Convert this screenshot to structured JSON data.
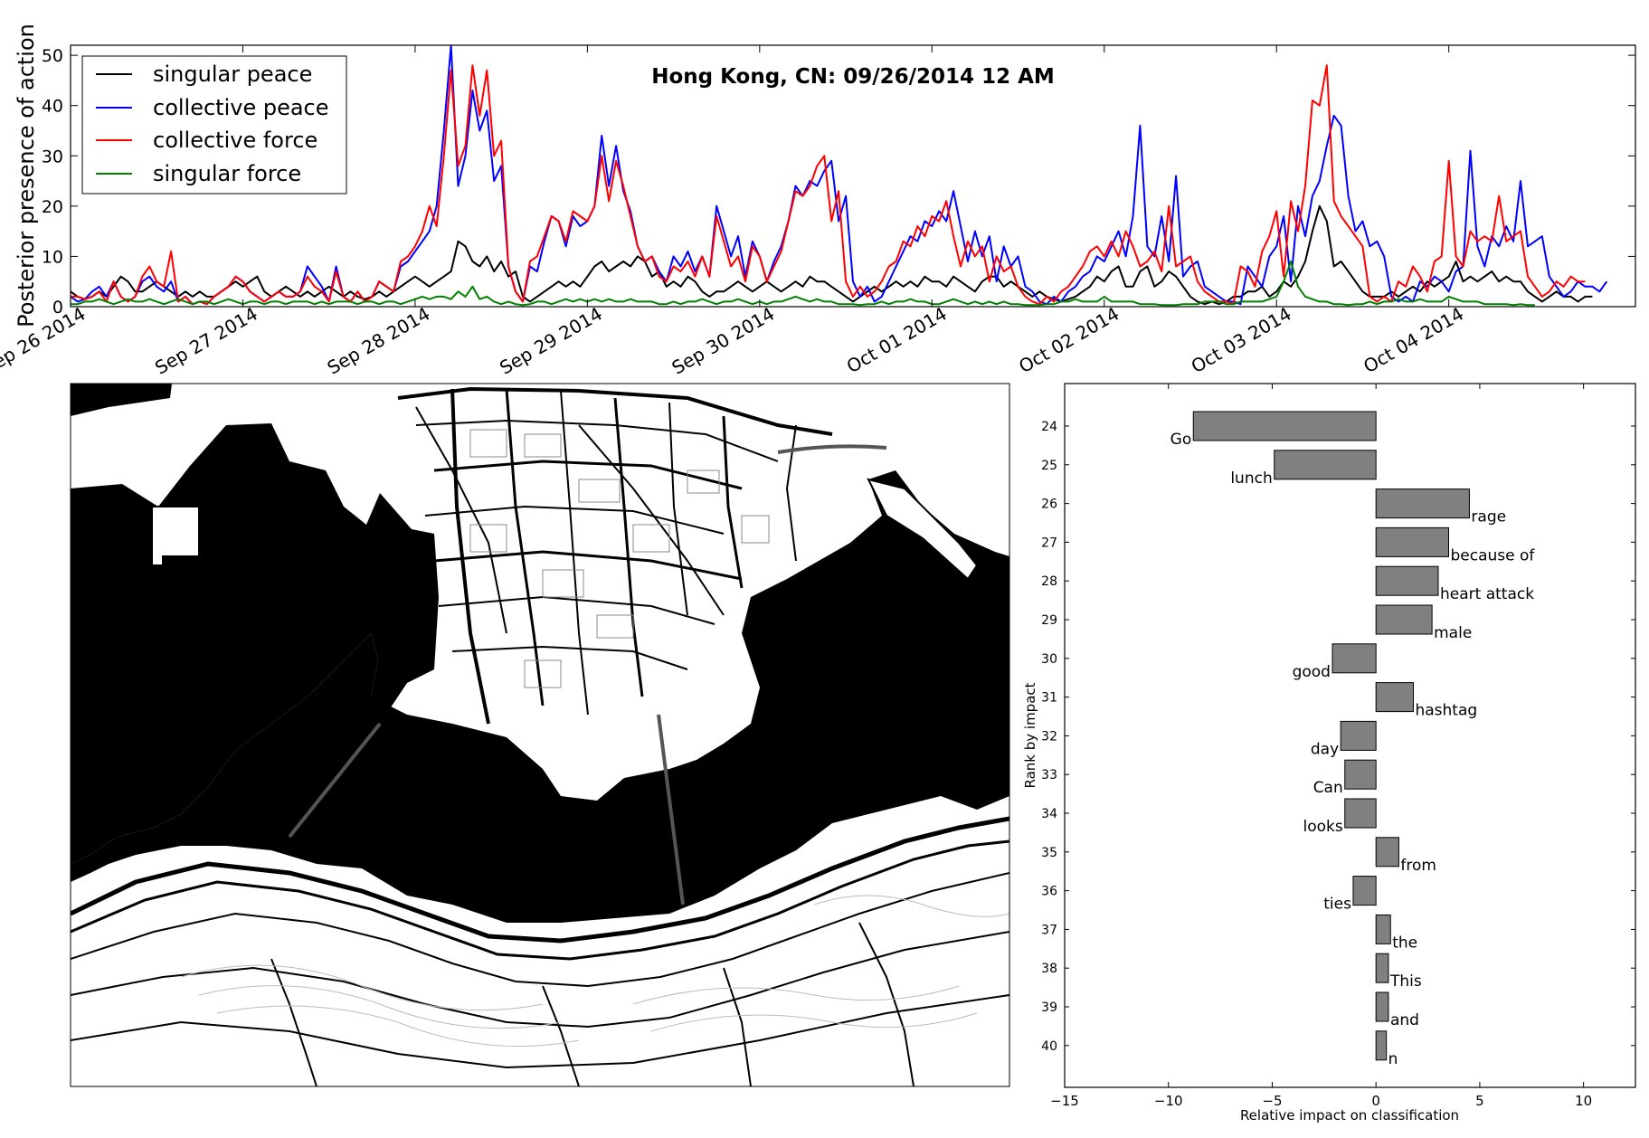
{
  "chart_data": [
    {
      "type": "line",
      "title": "Hong Kong, CN: 09/26/2014 12 AM",
      "ylabel": "Posterior presence of action",
      "xlabel": "",
      "ylim": [
        0,
        52
      ],
      "yticks": [
        0,
        10,
        20,
        30,
        40,
        50
      ],
      "xlim": [
        0,
        218
      ],
      "xticks": [
        0,
        24,
        48,
        72,
        96,
        120,
        144,
        168,
        192
      ],
      "xtick_labels": [
        "Sep 26 2014",
        "Sep 27 2014",
        "Sep 28 2014",
        "Sep 29 2014",
        "Sep 30 2014",
        "Oct 01 2014",
        "Oct 02 2014",
        "Oct 03 2014",
        "Oct 04 2014"
      ],
      "legend_position": "top-left",
      "grid": false,
      "series": [
        {
          "name": "singular peace",
          "color": "#000000",
          "values": [
            3,
            2,
            1.5,
            2,
            3,
            2,
            4,
            6,
            5,
            3,
            3,
            4,
            5,
            4,
            3,
            2,
            3,
            2,
            3,
            2,
            2,
            3,
            4,
            5,
            4,
            5,
            6,
            3,
            2,
            3,
            4,
            3,
            2,
            3,
            2,
            3,
            4,
            3,
            2,
            3,
            2,
            1.5,
            2,
            3,
            2,
            3,
            4,
            5,
            6,
            5,
            4,
            5,
            6,
            7,
            13,
            12,
            9,
            8,
            10,
            7,
            9,
            6,
            7,
            2,
            1,
            2,
            3,
            4,
            5,
            4,
            5,
            4,
            6,
            8,
            9,
            7,
            8,
            9,
            8,
            10,
            9,
            6,
            7,
            4,
            5,
            4,
            6,
            5,
            3,
            2,
            3,
            3,
            4,
            5,
            4,
            3,
            4,
            5,
            4,
            3,
            4,
            5,
            4,
            6,
            5,
            5,
            4,
            3,
            2,
            1,
            2,
            3,
            4,
            3,
            4,
            5,
            4,
            5,
            4,
            6,
            5,
            5,
            4,
            6,
            5,
            4,
            3,
            5,
            6,
            6,
            4,
            5,
            4,
            3,
            2,
            3,
            2,
            1.5,
            1,
            1.5,
            2,
            3,
            4,
            6,
            5,
            7,
            8,
            4,
            4,
            7,
            8,
            4,
            5,
            7,
            6,
            4,
            2,
            1,
            0.5,
            1,
            0.5,
            1,
            2,
            2,
            3,
            3,
            4,
            2,
            3,
            5,
            4,
            6,
            9,
            15,
            20,
            17,
            8,
            9,
            7,
            5,
            3,
            2,
            2,
            2,
            3,
            2,
            3,
            4,
            3,
            5,
            4,
            5,
            6,
            9,
            5,
            6,
            5,
            6,
            7,
            5,
            6,
            5,
            5,
            3,
            2,
            1,
            2,
            3,
            2,
            2,
            1,
            2,
            2
          ]
        },
        {
          "name": "collective peace",
          "color": "#0000ff",
          "values": [
            2,
            1,
            1.5,
            3,
            4,
            2,
            5,
            2,
            1,
            2,
            5,
            6,
            4,
            3,
            5,
            1,
            2,
            0.5,
            1,
            0.5,
            2,
            3,
            4,
            6,
            5,
            3,
            2,
            1,
            2,
            3,
            2,
            2,
            3,
            8,
            6,
            4,
            1,
            8,
            2,
            1,
            3,
            1,
            2,
            5,
            4,
            3,
            8,
            9,
            11,
            13,
            15,
            20,
            35,
            52,
            24,
            30,
            43,
            35,
            39,
            25,
            28,
            8,
            3,
            1,
            8,
            7,
            13,
            18,
            17,
            12,
            18,
            16,
            17,
            20,
            34,
            24,
            32,
            23,
            19,
            12,
            9,
            10,
            7,
            5,
            10,
            8,
            11,
            7,
            10,
            6,
            20,
            15,
            10,
            14,
            6,
            13,
            10,
            5,
            9,
            12,
            17,
            24,
            22,
            25,
            24,
            27,
            29,
            17,
            22,
            5,
            2,
            4,
            1,
            2,
            5,
            8,
            11,
            14,
            13,
            17,
            16,
            19,
            17,
            23,
            16,
            9,
            15,
            10,
            14,
            5,
            12,
            8,
            10,
            4,
            3,
            1,
            0.5,
            2,
            1,
            3,
            4,
            6,
            7,
            10,
            9,
            12,
            15,
            10,
            18,
            36,
            12,
            10,
            18,
            9,
            26,
            6,
            8,
            9,
            4,
            3,
            2,
            1,
            1,
            0.5,
            8,
            6,
            4,
            10,
            12,
            18,
            5,
            20,
            14,
            22,
            25,
            32,
            38,
            36,
            22,
            15,
            17,
            12,
            13,
            10,
            2,
            1,
            2,
            1,
            5,
            4,
            6,
            5,
            3,
            7,
            8,
            31,
            12,
            8,
            14,
            12,
            16,
            13,
            25,
            12,
            13,
            14,
            6,
            4,
            2,
            3,
            5,
            4,
            4,
            3,
            5
          ]
        },
        {
          "name": "collective force",
          "color": "#ff0000",
          "values": [
            2,
            2,
            1.5,
            2,
            3,
            1,
            5,
            2,
            1,
            2,
            6,
            8,
            5,
            4,
            11,
            1,
            2,
            0.5,
            1,
            0.5,
            2,
            3,
            4,
            6,
            5,
            3,
            2,
            1,
            2,
            3,
            2,
            2,
            3,
            6,
            4,
            3,
            1,
            7,
            2,
            1,
            3,
            1,
            2,
            5,
            4,
            3,
            9,
            10,
            12,
            15,
            20,
            16,
            30,
            47,
            28,
            32,
            48,
            38,
            47,
            30,
            33,
            8,
            3,
            1,
            9,
            10,
            14,
            18,
            17,
            13,
            19,
            18,
            17,
            20,
            30,
            21,
            29,
            24,
            18,
            12,
            9,
            10,
            6,
            5,
            8,
            7,
            9,
            6,
            10,
            6,
            18,
            13,
            8,
            10,
            5,
            12,
            10,
            5,
            8,
            11,
            17,
            23,
            22,
            24,
            28,
            30,
            17,
            23,
            5,
            2,
            4,
            2,
            3,
            5,
            8,
            9,
            13,
            12,
            16,
            14,
            18,
            17,
            21,
            14,
            8,
            13,
            10,
            12,
            5,
            10,
            7,
            8,
            4,
            2,
            1,
            0.5,
            2,
            1,
            3,
            4,
            6,
            8,
            11,
            12,
            10,
            13,
            10,
            15,
            12,
            8,
            9,
            11,
            7,
            20,
            8,
            9,
            10,
            5,
            3,
            2,
            1,
            1,
            0.5,
            8,
            7,
            4,
            11,
            14,
            19,
            6,
            21,
            15,
            24,
            41,
            40,
            48,
            21,
            18,
            16,
            14,
            12,
            2,
            1,
            2,
            1,
            5,
            4,
            8,
            6,
            3,
            9,
            10,
            29,
            10,
            8,
            15,
            13,
            14,
            13,
            22,
            13,
            14,
            15,
            6,
            4,
            2,
            3,
            5,
            4,
            6,
            5,
            5
          ]
        },
        {
          "name": "singular force",
          "color": "#008000",
          "values": [
            0.5,
            0.5,
            1,
            1,
            1.5,
            1,
            0.5,
            1,
            1.5,
            1,
            1,
            1.5,
            1,
            0.5,
            1,
            1.5,
            1,
            0.5,
            1,
            1,
            0.5,
            1,
            1.5,
            1,
            0.5,
            1,
            1,
            0.5,
            1,
            1,
            0.5,
            1,
            1,
            1,
            0.5,
            1,
            0.5,
            1,
            1,
            1,
            0.5,
            1,
            1,
            0.5,
            1,
            1,
            0.5,
            1,
            1.5,
            2,
            1.5,
            2,
            2,
            1.5,
            3,
            2,
            4,
            1.5,
            2,
            1,
            0.5,
            1,
            0.5,
            0.3,
            0.5,
            1,
            1,
            0.5,
            1,
            1.5,
            1,
            1.5,
            1,
            1.5,
            1,
            1.5,
            1,
            1,
            1.5,
            1,
            1,
            1,
            0.5,
            0.5,
            1,
            0.5,
            1,
            1,
            1.5,
            1,
            0.5,
            1,
            1,
            1.5,
            1,
            0.5,
            1,
            0.5,
            1,
            1,
            1.5,
            2,
            1.5,
            1,
            1.5,
            1,
            1,
            0.5,
            0.5,
            0.5,
            0.3,
            0.5,
            0.5,
            1,
            0.5,
            1,
            1,
            1.5,
            1,
            1,
            0.5,
            0.5,
            1,
            1.5,
            1,
            0.5,
            1,
            0.5,
            1,
            0.5,
            1,
            0.5,
            0.5,
            0.3,
            0.3,
            0.3,
            0.5,
            0.5,
            1,
            1,
            1.5,
            1,
            1,
            1,
            2,
            1,
            1,
            1,
            1,
            0.5,
            0.5,
            0.5,
            0.3,
            0.3,
            0.3,
            0.5,
            0.5,
            0.5,
            1,
            1,
            1,
            0.5,
            0.5,
            1,
            1,
            1,
            1,
            1.5,
            2,
            5,
            9,
            4,
            2,
            1.5,
            1,
            1,
            0.5,
            0.5,
            0.3,
            0.5,
            0.5,
            1,
            0.5,
            1,
            1,
            1.5,
            1,
            1,
            1.5,
            1,
            1,
            1,
            2,
            1.5,
            1,
            1,
            1,
            0.5,
            0.5,
            0.5,
            0.5,
            0.3,
            0.5,
            0.3,
            0.3
          ]
        }
      ]
    },
    {
      "type": "bar",
      "orientation": "horizontal",
      "xlabel": "Relative impact on classification",
      "ylabel": "Rank by impact",
      "xlim": [
        -15,
        12.5
      ],
      "xticks": [
        -15,
        -10,
        -5,
        0,
        5,
        10
      ],
      "xtick_labels": [
        "−15",
        "−10",
        "−5",
        "0",
        "5",
        "10"
      ],
      "bar_color": "#808080",
      "categories": [
        "24",
        "25",
        "26",
        "27",
        "28",
        "29",
        "30",
        "31",
        "32",
        "33",
        "34",
        "35",
        "36",
        "37",
        "38",
        "39",
        "40"
      ],
      "words": [
        "Go",
        "lunch",
        "rage",
        "because of",
        "heart attack",
        "male",
        "good",
        "hashtag",
        "day",
        "Can",
        "looks",
        "from",
        "ties",
        "the",
        "This",
        "and",
        "n"
      ],
      "values": [
        -8.8,
        -4.9,
        4.5,
        3.5,
        3.0,
        2.7,
        -2.1,
        1.8,
        -1.7,
        -1.5,
        -1.5,
        1.1,
        -1.1,
        0.7,
        0.6,
        0.6,
        0.5
      ]
    }
  ]
}
